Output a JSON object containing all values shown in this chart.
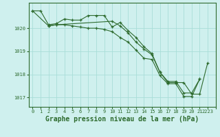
{
  "background_color": "#cff0ee",
  "grid_color": "#a8ddd8",
  "line_color": "#2d6a2d",
  "xlabel": "Graphe pression niveau de la mer (hPa)",
  "xlabel_fontsize": 7,
  "ylim": [
    1016.6,
    1021.1
  ],
  "xlim": [
    -0.5,
    23
  ],
  "yticks": [
    1017,
    1018,
    1019,
    1020
  ],
  "xticks": [
    0,
    1,
    2,
    3,
    4,
    5,
    6,
    7,
    8,
    9,
    10,
    11,
    12,
    13,
    14,
    15,
    16,
    17,
    18,
    19,
    20,
    21,
    22,
    23
  ],
  "xtick_labels": [
    "0",
    "1",
    "2",
    "3",
    "4",
    "5",
    "6",
    "7",
    "8",
    "9",
    "10",
    "11",
    "12",
    "13",
    "14",
    "15",
    "16",
    "17",
    "18",
    "19",
    "20",
    "21",
    "2223",
    ""
  ],
  "series": [
    {
      "x": [
        0,
        1,
        2,
        3,
        4,
        5,
        6,
        7,
        8,
        9,
        10,
        11,
        12,
        13,
        14,
        15,
        16,
        17,
        18,
        19,
        20,
        21
      ],
      "y": [
        1020.75,
        1020.75,
        1020.15,
        1020.2,
        1020.4,
        1020.35,
        1020.35,
        1020.55,
        1020.55,
        1020.55,
        1020.05,
        1020.25,
        1019.9,
        1019.6,
        1019.2,
        1018.9,
        1018.1,
        1017.7,
        1017.7,
        1017.2,
        1017.2,
        1017.8
      ]
    },
    {
      "x": [
        0,
        2,
        3,
        4,
        5,
        6,
        7,
        8,
        9,
        10,
        11,
        12,
        13,
        14,
        15,
        16,
        17,
        18,
        19,
        20,
        21
      ],
      "y": [
        1020.75,
        1020.1,
        1020.15,
        1020.15,
        1020.1,
        1020.05,
        1020.0,
        1020.0,
        1019.95,
        1019.85,
        1019.6,
        1019.4,
        1019.05,
        1018.7,
        1018.65,
        1017.95,
        1017.6,
        1017.6,
        1017.05,
        1017.05,
        1017.8
      ]
    },
    {
      "x": [
        2,
        3,
        10,
        11,
        12,
        13,
        14,
        15,
        16,
        17,
        18,
        19,
        20,
        21,
        22
      ],
      "y": [
        1020.1,
        1020.15,
        1020.3,
        1020.1,
        1019.8,
        1019.4,
        1019.1,
        1018.85,
        1018.1,
        1017.65,
        1017.65,
        1017.65,
        1017.15,
        1017.15,
        1018.5
      ]
    }
  ]
}
